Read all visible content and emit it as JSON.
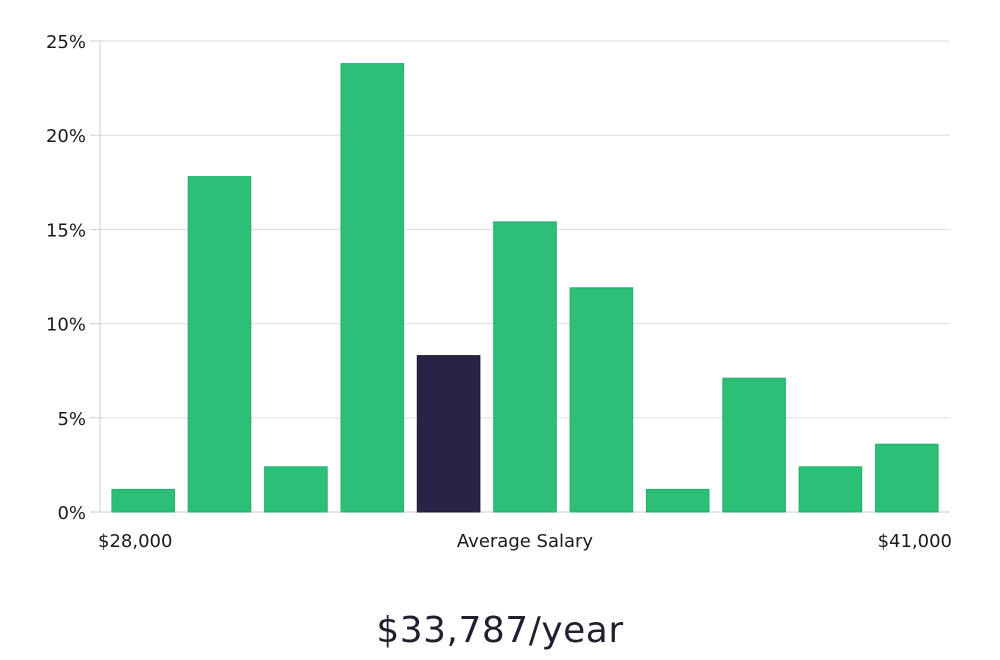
{
  "chart_data": {
    "type": "bar",
    "categories": [
      "1",
      "2",
      "3",
      "4",
      "5",
      "6",
      "7",
      "8",
      "9",
      "10",
      "11"
    ],
    "values": [
      1.2,
      17.8,
      2.4,
      23.8,
      8.3,
      15.4,
      11.9,
      1.2,
      7.1,
      2.4,
      3.6
    ],
    "highlight_index": 4,
    "ylim": [
      0,
      25
    ],
    "yticks": [
      0,
      5,
      10,
      15,
      20,
      25
    ],
    "ytick_suffix": "%",
    "grid": true,
    "x_min_label": "$28,000",
    "x_center_label": "Average Salary",
    "x_max_label": "$41,000",
    "colors": {
      "bar": "#2bbf77",
      "highlight": "#272445",
      "grid": "#dddddd",
      "axis": "#cccccc"
    }
  },
  "summary": {
    "average_salary": "$33,787/year"
  }
}
